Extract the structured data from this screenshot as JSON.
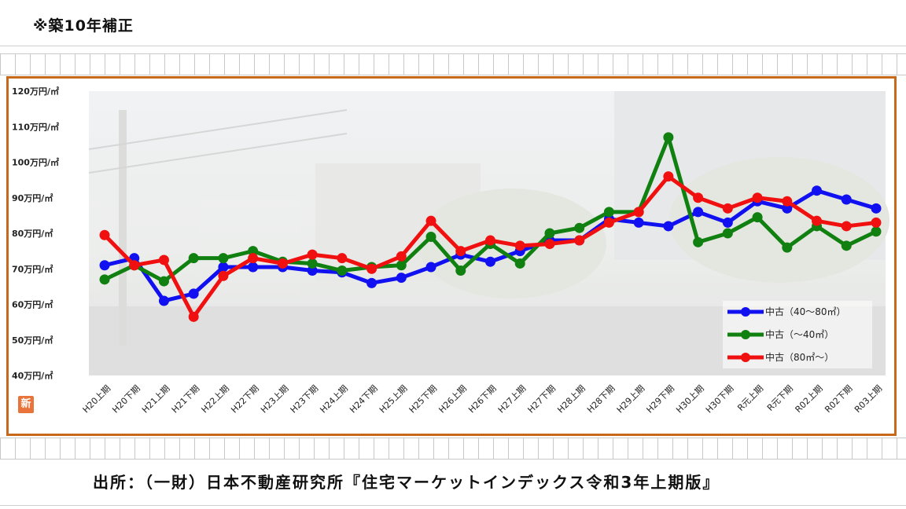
{
  "note": "※築10年補正",
  "source": "出所：（一財）日本不動産研究所『住宅マーケットインデックス令和3年上期版』",
  "badge": "新",
  "chart_data": {
    "type": "line",
    "ylim": [
      40,
      120
    ],
    "y_ticks": [
      {
        "value": 120,
        "label": "120万円/㎡"
      },
      {
        "value": 110,
        "label": "110万円/㎡"
      },
      {
        "value": 100,
        "label": "100万円/㎡"
      },
      {
        "value": 90,
        "label": "90万円/㎡"
      },
      {
        "value": 80,
        "label": "80万円/㎡"
      },
      {
        "value": 70,
        "label": "70万円/㎡"
      },
      {
        "value": 60,
        "label": "60万円/㎡"
      },
      {
        "value": 50,
        "label": "50万円/㎡"
      },
      {
        "value": 40,
        "label": "40万円/㎡"
      }
    ],
    "categories": [
      "H20上期",
      "H20下期",
      "H21上期",
      "H21下期",
      "H22上期",
      "H22下期",
      "H23上期",
      "H23下期",
      "H24上期",
      "H24下期",
      "H25上期",
      "H25下期",
      "H26上期",
      "H26下期",
      "H27上期",
      "H27下期",
      "H28上期",
      "H28下期",
      "H29上期",
      "H29下期",
      "H30上期",
      "H30下期",
      "R元上期",
      "R元下期",
      "R02上期",
      "R02下期",
      "R03上期"
    ],
    "series": [
      {
        "name": "中古（40～80㎡）",
        "color": "#1010f0",
        "values": [
          71,
          73,
          61,
          63,
          70.5,
          70.5,
          70.5,
          69.5,
          69,
          66,
          67.5,
          70.5,
          74,
          72,
          75,
          78,
          78,
          84,
          83,
          82,
          86,
          83,
          89,
          87,
          92,
          89.5,
          87
        ]
      },
      {
        "name": "中古（～40㎡）",
        "color": "#108010",
        "values": [
          67,
          71,
          66.5,
          73,
          73,
          75,
          72,
          71.5,
          69.5,
          70.5,
          71,
          79,
          69.5,
          77,
          71.5,
          80,
          81.5,
          86,
          86,
          107,
          77.5,
          80,
          84.5,
          76,
          82,
          76.5,
          80.5
        ]
      },
      {
        "name": "中古（80㎡～）",
        "color": "#f01010",
        "values": [
          79.5,
          71,
          72.5,
          56.5,
          68,
          73,
          71.5,
          74,
          73,
          70,
          73.5,
          83.5,
          75,
          78,
          76.5,
          77,
          78,
          83,
          86,
          96,
          90,
          87,
          90,
          89,
          83.5,
          82,
          83
        ]
      }
    ],
    "legend_position": "bottom-right"
  }
}
